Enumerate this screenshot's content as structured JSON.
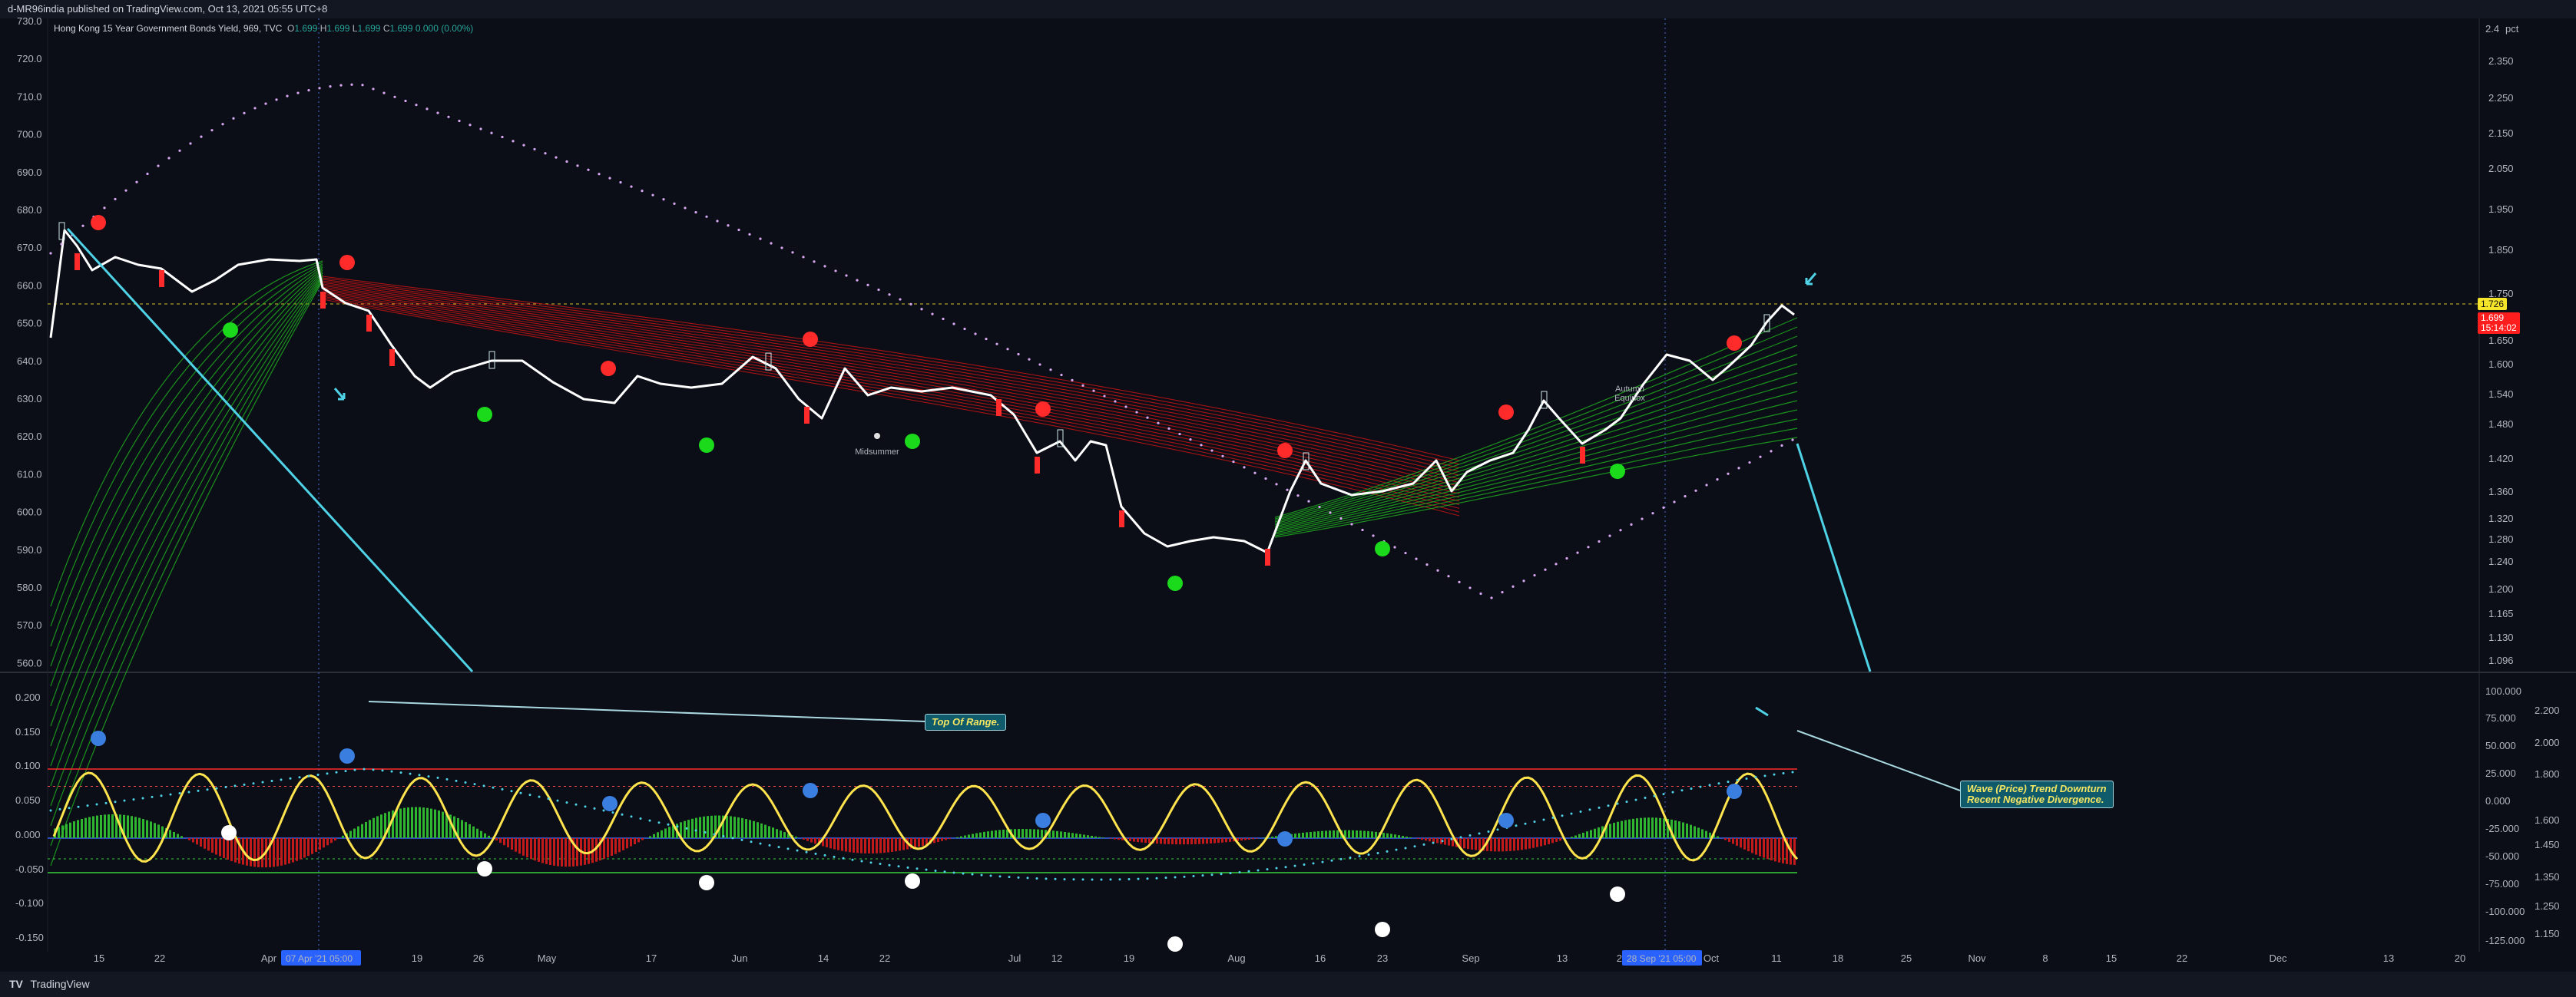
{
  "header": {
    "publisher": "d-MR96india published on TradingView.com, Oct 13, 2021 05:55 UTC+8"
  },
  "legend": {
    "symbol": "Hong Kong 15 Year Government Bonds Yield, 969, TVC",
    "o_label": "O",
    "o_value": "1.699",
    "h_label": "H",
    "h_value": "1.699",
    "l_label": "L",
    "l_value": "1.699",
    "c_label": "C",
    "c_value": "1.699",
    "change": "0.000 (0.00%)"
  },
  "colors": {
    "background": "#0b0e17",
    "price_line": "#ffffff",
    "bull": "#1bd91b",
    "bear": "#ff2a2a",
    "wave": "#ffe44d",
    "accent_cyan": "#4fd2e6",
    "dot_blue": "#3a7ee0"
  },
  "left_axis_labels": [
    "730.0",
    "720.0",
    "710.0",
    "700.0",
    "690.0",
    "680.0",
    "670.0",
    "660.0",
    "650.0",
    "640.0",
    "630.0",
    "620.0",
    "610.0",
    "600.0",
    "590.0",
    "580.0",
    "570.0",
    "560.0"
  ],
  "right_axis_labels": [
    "2.350",
    "2.250",
    "2.150",
    "2.050",
    "1.950",
    "1.850",
    "1.750",
    "1.650",
    "1.600",
    "1.540",
    "1.480",
    "1.420",
    "1.360",
    "1.320",
    "1.280",
    "1.240",
    "1.200",
    "1.165",
    "1.130",
    "1.096"
  ],
  "right_axis_unit": "pct",
  "price_tags": {
    "yellow": "1.726",
    "red_value": "1.699",
    "red_timer": "15:14:02"
  },
  "osc_left_labels": [
    "0.200",
    "0.150",
    "0.100",
    "0.050",
    "0.000",
    "-0.050",
    "-0.100",
    "-0.150"
  ],
  "osc_mid_labels": [
    "100.000",
    "75.000",
    "50.000",
    "25.000",
    "0.000",
    "-25.000",
    "-50.000",
    "-75.000",
    "-100.000",
    "-125.000"
  ],
  "osc_right_labels": [
    "2.200",
    "2.000",
    "1.800",
    "1.600",
    "1.450",
    "1.350",
    "1.250",
    "1.150"
  ],
  "x_axis_labels": [
    "15",
    "22",
    "Apr",
    "19",
    "26",
    "May",
    "17",
    "Jun",
    "14",
    "22",
    "Jul",
    "12",
    "19",
    "Aug",
    "16",
    "23",
    "Sep",
    "13",
    "20",
    "Oct",
    "11",
    "18",
    "25",
    "Nov",
    "8",
    "15",
    "22",
    "Dec",
    "13",
    "20"
  ],
  "crosshair_tags": {
    "left": "07 Apr '21   05:00",
    "right": "28 Sep '21   05:00"
  },
  "annotations": {
    "midsummer": "Midsummer",
    "autumn_line1": "Autumn",
    "autumn_line2": "Equinox",
    "top_of_range": "Top Of Range.",
    "wave_line1": "Wave (Price) Trend Downturn",
    "wave_line2": "Recent Negative Divergence."
  },
  "footer": {
    "brand": "TradingView"
  }
}
